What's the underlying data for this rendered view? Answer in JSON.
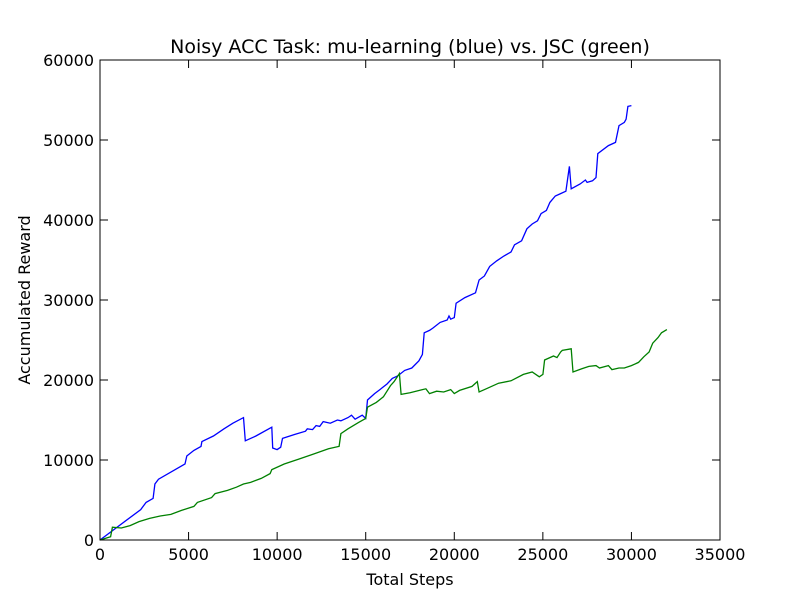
{
  "chart_data": {
    "type": "line",
    "title": "Noisy ACC Task: mu-learning (blue) vs. JSC (green)",
    "xlabel": "Total Steps",
    "ylabel": "Accumulated Reward",
    "xlim": [
      0,
      35000
    ],
    "ylim": [
      0,
      60000
    ],
    "x_ticks": [
      0,
      5000,
      10000,
      15000,
      20000,
      25000,
      30000,
      35000
    ],
    "y_ticks": [
      0,
      10000,
      20000,
      30000,
      40000,
      50000,
      60000
    ],
    "grid": false,
    "series": [
      {
        "color": "#0000ff",
        "points": [
          [
            0,
            0
          ],
          [
            2300,
            3800
          ],
          [
            2600,
            4700
          ],
          [
            3000,
            5200
          ],
          [
            3100,
            7000
          ],
          [
            3300,
            7600
          ],
          [
            4800,
            9500
          ],
          [
            4900,
            10500
          ],
          [
            5300,
            11200
          ],
          [
            5700,
            11700
          ],
          [
            5750,
            12300
          ],
          [
            6400,
            13000
          ],
          [
            7000,
            13900
          ],
          [
            7500,
            14600
          ],
          [
            8100,
            15300
          ],
          [
            8200,
            12400
          ],
          [
            8800,
            13000
          ],
          [
            9700,
            14100
          ],
          [
            9750,
            11500
          ],
          [
            10000,
            11300
          ],
          [
            10200,
            11600
          ],
          [
            10300,
            12700
          ],
          [
            11000,
            13200
          ],
          [
            11600,
            13600
          ],
          [
            11700,
            13900
          ],
          [
            12000,
            13800
          ],
          [
            12200,
            14300
          ],
          [
            12400,
            14200
          ],
          [
            12600,
            14800
          ],
          [
            13000,
            14600
          ],
          [
            13400,
            15000
          ],
          [
            13600,
            14900
          ],
          [
            14000,
            15300
          ],
          [
            14200,
            15600
          ],
          [
            14400,
            15100
          ],
          [
            14800,
            15600
          ],
          [
            15000,
            15200
          ],
          [
            15100,
            17500
          ],
          [
            15500,
            18300
          ],
          [
            15800,
            18800
          ],
          [
            16200,
            19500
          ],
          [
            16500,
            20200
          ],
          [
            16800,
            20500
          ],
          [
            17200,
            21200
          ],
          [
            17600,
            21500
          ],
          [
            18000,
            22400
          ],
          [
            18200,
            23200
          ],
          [
            18300,
            25900
          ],
          [
            18600,
            26200
          ],
          [
            18800,
            26500
          ],
          [
            19200,
            27200
          ],
          [
            19600,
            27500
          ],
          [
            19700,
            28000
          ],
          [
            19800,
            27600
          ],
          [
            20000,
            27800
          ],
          [
            20100,
            29600
          ],
          [
            20600,
            30300
          ],
          [
            21200,
            30900
          ],
          [
            21400,
            32500
          ],
          [
            21700,
            33000
          ],
          [
            22000,
            34200
          ],
          [
            22400,
            34900
          ],
          [
            22800,
            35500
          ],
          [
            23200,
            36000
          ],
          [
            23400,
            36900
          ],
          [
            23800,
            37400
          ],
          [
            24100,
            38900
          ],
          [
            24400,
            39500
          ],
          [
            24700,
            39900
          ],
          [
            24900,
            40800
          ],
          [
            25200,
            41200
          ],
          [
            25400,
            42200
          ],
          [
            25700,
            43000
          ],
          [
            26000,
            43300
          ],
          [
            26300,
            43600
          ],
          [
            26400,
            45200
          ],
          [
            26500,
            46700
          ],
          [
            26600,
            43900
          ],
          [
            27100,
            44500
          ],
          [
            27400,
            45000
          ],
          [
            27500,
            44700
          ],
          [
            27800,
            44900
          ],
          [
            28000,
            45300
          ],
          [
            28100,
            48300
          ],
          [
            28700,
            49300
          ],
          [
            29100,
            49700
          ],
          [
            29300,
            51800
          ],
          [
            29600,
            52200
          ],
          [
            29700,
            52600
          ],
          [
            29800,
            54200
          ],
          [
            30000,
            54300
          ]
        ]
      },
      {
        "color": "#008000",
        "points": [
          [
            0,
            0
          ],
          [
            600,
            400
          ],
          [
            700,
            1600
          ],
          [
            1200,
            1500
          ],
          [
            1700,
            1800
          ],
          [
            2200,
            2300
          ],
          [
            2800,
            2700
          ],
          [
            3400,
            3000
          ],
          [
            4000,
            3200
          ],
          [
            4600,
            3700
          ],
          [
            5300,
            4200
          ],
          [
            5500,
            4700
          ],
          [
            6300,
            5300
          ],
          [
            6500,
            5800
          ],
          [
            7200,
            6200
          ],
          [
            7700,
            6600
          ],
          [
            8100,
            7000
          ],
          [
            8500,
            7200
          ],
          [
            9100,
            7700
          ],
          [
            9600,
            8300
          ],
          [
            9700,
            8800
          ],
          [
            10400,
            9500
          ],
          [
            11200,
            10100
          ],
          [
            12000,
            10700
          ],
          [
            12900,
            11400
          ],
          [
            13500,
            11700
          ],
          [
            13600,
            13300
          ],
          [
            14000,
            13900
          ],
          [
            14600,
            14700
          ],
          [
            15000,
            15200
          ],
          [
            15100,
            16600
          ],
          [
            15600,
            17200
          ],
          [
            16000,
            17900
          ],
          [
            16400,
            19300
          ],
          [
            16600,
            19800
          ],
          [
            16900,
            20800
          ],
          [
            17000,
            18200
          ],
          [
            17500,
            18400
          ],
          [
            18200,
            18800
          ],
          [
            18400,
            18900
          ],
          [
            18600,
            18300
          ],
          [
            19000,
            18600
          ],
          [
            19400,
            18500
          ],
          [
            19800,
            18800
          ],
          [
            20000,
            18300
          ],
          [
            20300,
            18700
          ],
          [
            21000,
            19200
          ],
          [
            21300,
            19800
          ],
          [
            21400,
            18500
          ],
          [
            21800,
            18900
          ],
          [
            22500,
            19600
          ],
          [
            23200,
            19900
          ],
          [
            23900,
            20700
          ],
          [
            24400,
            21000
          ],
          [
            24800,
            20400
          ],
          [
            25000,
            20700
          ],
          [
            25100,
            22500
          ],
          [
            25600,
            23000
          ],
          [
            25800,
            22800
          ],
          [
            26000,
            23500
          ],
          [
            26100,
            23700
          ],
          [
            26600,
            23900
          ],
          [
            26700,
            21000
          ],
          [
            27200,
            21400
          ],
          [
            27600,
            21700
          ],
          [
            28000,
            21800
          ],
          [
            28200,
            21500
          ],
          [
            28700,
            21800
          ],
          [
            28900,
            21300
          ],
          [
            29300,
            21500
          ],
          [
            29600,
            21500
          ],
          [
            30000,
            21800
          ],
          [
            30400,
            22200
          ],
          [
            30700,
            22900
          ],
          [
            31000,
            23500
          ],
          [
            31200,
            24600
          ],
          [
            31500,
            25300
          ],
          [
            31700,
            25900
          ],
          [
            32000,
            26300
          ]
        ]
      }
    ]
  }
}
